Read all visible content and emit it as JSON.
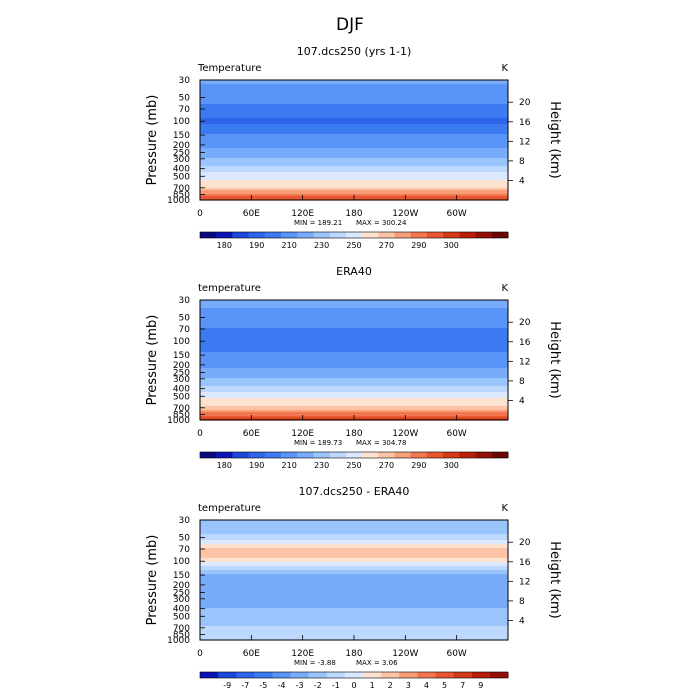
{
  "figure": {
    "title": "DJF"
  },
  "colors": {
    "temp_fills": [
      "#0a0a82",
      "#0a14b4",
      "#1e46dc",
      "#2d64ea",
      "#3c7af2",
      "#5a94f6",
      "#78acfa",
      "#9ac4fc",
      "#bcd8fe",
      "#dce8fe",
      "#fee2d0",
      "#fcc4a4",
      "#f89e78",
      "#f47650",
      "#e85630",
      "#d43a18",
      "#b81e0a",
      "#921006",
      "#6a0604"
    ],
    "diff_fills": [
      "#0a0a82",
      "#0a14b4",
      "#1e46dc",
      "#2d64ea",
      "#3c7af2",
      "#5a94f6",
      "#78acfa",
      "#9ac4fc",
      "#bcd8fe",
      "#dce8fe",
      "#fee2d0",
      "#fcc4a4",
      "#f89e78",
      "#f47650",
      "#e85630",
      "#d43a18",
      "#b81e0a",
      "#921006",
      "#6a0604"
    ]
  },
  "chart_data": [
    {
      "type": "heatmap",
      "title": "107.dcs250 (yrs 1-1)",
      "variable_label": "Temperature",
      "units": "K",
      "ylabel": "Pressure (mb)",
      "y2label": "Height (km)",
      "x_ticks": [
        "0",
        "60E",
        "120E",
        "180",
        "120W",
        "60W"
      ],
      "y_ticks": [
        "30",
        "50",
        "70",
        "100",
        "150",
        "200",
        "250",
        "300",
        "400",
        "500",
        "700",
        "850",
        "1000"
      ],
      "y_tick_values": [
        30,
        50,
        70,
        100,
        150,
        200,
        250,
        300,
        400,
        500,
        700,
        850,
        1000
      ],
      "y2_ticks": [
        "20",
        "16",
        "12",
        "8",
        "4"
      ],
      "y2_tick_values": [
        20,
        16,
        12,
        8,
        4
      ],
      "ylim": [
        1000,
        30
      ],
      "y_scale": "log",
      "xlim": [
        0,
        360
      ],
      "profile_p": [
        30,
        50,
        70,
        100,
        150,
        200,
        250,
        300,
        400,
        500,
        600,
        700,
        850,
        925,
        1000
      ],
      "profile_v": [
        222,
        214,
        207,
        198,
        211,
        217,
        223,
        230,
        244,
        256,
        264,
        270,
        281,
        286,
        290
      ],
      "min_label": "MIN = 189.21",
      "max_label": "MAX = 300.24",
      "colorbar_labels": [
        "180",
        "190",
        "210",
        "230",
        "250",
        "270",
        "290",
        "300"
      ],
      "colorbar_label_index": [
        1,
        3,
        5,
        7,
        9,
        11,
        13,
        15
      ],
      "colorbar_bins": 19
    },
    {
      "type": "heatmap",
      "title": "ERA40",
      "variable_label": "temperature",
      "units": "K",
      "ylabel": "Pressure (mb)",
      "y2label": "Height (km)",
      "x_ticks": [
        "0",
        "60E",
        "120E",
        "180",
        "120W",
        "60W"
      ],
      "y_ticks": [
        "30",
        "50",
        "70",
        "100",
        "150",
        "200",
        "250",
        "300",
        "400",
        "500",
        "700",
        "850",
        "1000"
      ],
      "y_tick_values": [
        30,
        50,
        70,
        100,
        150,
        200,
        250,
        300,
        400,
        500,
        700,
        850,
        1000
      ],
      "y2_ticks": [
        "20",
        "16",
        "12",
        "8",
        "4"
      ],
      "y2_tick_values": [
        20,
        16,
        12,
        8,
        4
      ],
      "ylim": [
        1000,
        30
      ],
      "y_scale": "log",
      "xlim": [
        0,
        360
      ],
      "profile_p": [
        30,
        50,
        70,
        100,
        150,
        200,
        250,
        300,
        400,
        500,
        600,
        700,
        850,
        925,
        1000
      ],
      "profile_v": [
        224,
        216,
        209,
        201,
        212,
        218,
        224,
        231,
        245,
        257,
        265,
        271,
        283,
        289,
        294
      ],
      "min_label": "MIN = 189.73",
      "max_label": "MAX = 304.78",
      "colorbar_labels": [
        "180",
        "190",
        "210",
        "230",
        "250",
        "270",
        "290",
        "300"
      ],
      "colorbar_label_index": [
        1,
        3,
        5,
        7,
        9,
        11,
        13,
        15
      ],
      "colorbar_bins": 19
    },
    {
      "type": "heatmap",
      "title": "107.dcs250 - ERA40",
      "variable_label": "temperature",
      "units": "K",
      "ylabel": "Pressure (mb)",
      "y2label": "Height (km)",
      "x_ticks": [
        "0",
        "60E",
        "120E",
        "180",
        "120W",
        "60W"
      ],
      "y_ticks": [
        "30",
        "50",
        "70",
        "100",
        "150",
        "200",
        "250",
        "300",
        "400",
        "500",
        "700",
        "850",
        "1000"
      ],
      "y_tick_values": [
        30,
        50,
        70,
        100,
        150,
        200,
        250,
        300,
        400,
        500,
        700,
        850,
        1000
      ],
      "y2_ticks": [
        "20",
        "16",
        "12",
        "8",
        "4"
      ],
      "y2_tick_values": [
        20,
        16,
        12,
        8,
        4
      ],
      "ylim": [
        1000,
        30
      ],
      "y_scale": "log",
      "xlim": [
        0,
        360
      ],
      "profile_p": [
        30,
        40,
        50,
        60,
        70,
        85,
        100,
        115,
        130,
        150,
        200,
        250,
        300,
        400,
        500,
        600,
        700,
        850,
        1000
      ],
      "profile_v": [
        -2,
        -1.5,
        -0.5,
        1,
        2,
        2.5,
        1.5,
        0,
        -1,
        -2.5,
        -3,
        -3,
        -3,
        -2,
        -2,
        -1.5,
        -0.5,
        0,
        -1
      ],
      "min_label": "MIN = -3.88",
      "max_label": "MAX = 3.06",
      "colorbar_labels": [
        "-9",
        "-7",
        "-5",
        "-4",
        "-3",
        "-2",
        "-1",
        "0",
        "1",
        "2",
        "3",
        "4",
        "5",
        "7",
        "9"
      ],
      "colorbar_label_index": [
        1,
        2,
        3,
        4,
        5,
        6,
        7,
        8,
        9,
        10,
        11,
        12,
        13,
        14,
        15
      ],
      "colorbar_bins": 17
    }
  ]
}
